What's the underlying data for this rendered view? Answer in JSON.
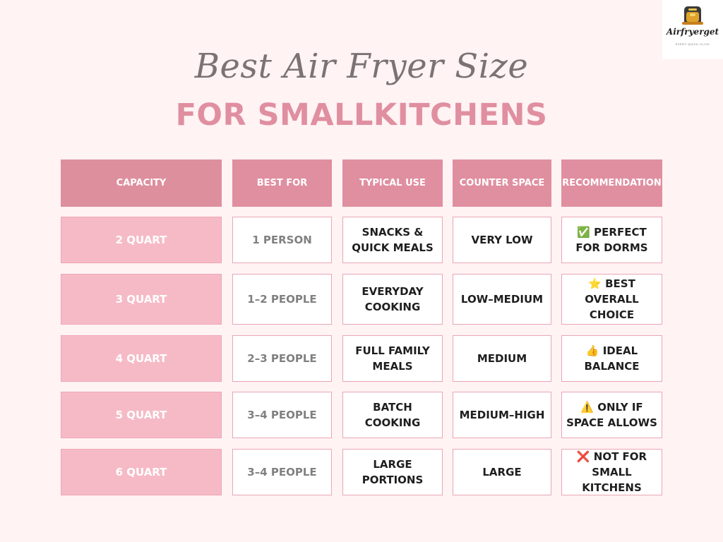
{
  "brand": {
    "name": "Airfryerget",
    "tagline": "EVERY QUICK CLICK",
    "icon": "air-fryer-icon"
  },
  "title": {
    "script": "Best Air Fryer Size",
    "bold": "FOR SMALLKITCHENS"
  },
  "colors": {
    "header": "#e08fa0",
    "capacity_cell": "#f6bac6",
    "border": "#eaa6b5",
    "background": "#fff3f4"
  },
  "table": {
    "headers": [
      "CAPACITY",
      "BEST FOR",
      "TYPICAL USE",
      "COUNTER SPACE",
      "RECOMMENDATION"
    ],
    "rows": [
      {
        "capacity": "2 QUART",
        "best_for": "1 PERSON",
        "use": "SNACKS & QUICK MEALS",
        "space": "VERY LOW",
        "rec": "✅ PERFECT FOR DORMS"
      },
      {
        "capacity": "3 QUART",
        "best_for": "1–2 PEOPLE",
        "use": "EVERYDAY COOKING",
        "space": "LOW–MEDIUM",
        "rec": "⭐ BEST OVERALL CHOICE"
      },
      {
        "capacity": "4 QUART",
        "best_for": "2–3 PEOPLE",
        "use": "FULL FAMILY MEALS",
        "space": "MEDIUM",
        "rec": "👍 IDEAL BALANCE"
      },
      {
        "capacity": "5 QUART",
        "best_for": "3–4 PEOPLE",
        "use": "BATCH COOKING",
        "space": "MEDIUM–HIGH",
        "rec": "⚠️ ONLY IF SPACE ALLOWS"
      },
      {
        "capacity": "6 QUART",
        "best_for": "3–4 PEOPLE",
        "use": "LARGE PORTIONS",
        "space": "LARGE",
        "rec": "❌ NOT FOR SMALL KITCHENS"
      }
    ]
  }
}
